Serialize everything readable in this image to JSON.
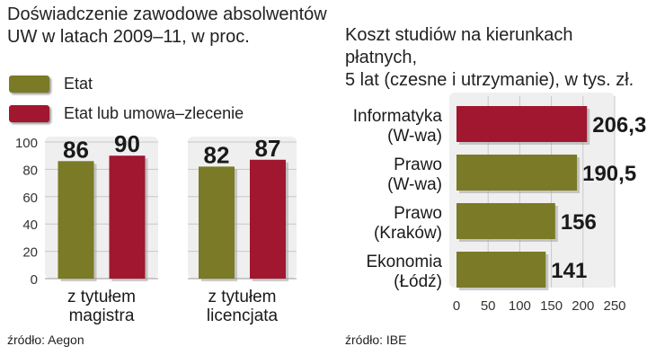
{
  "left": {
    "title_line1": "Doświadczenie zawodowe absolwentów",
    "title_line2": "UW w latach 2009–11, w proc.",
    "legend": [
      {
        "label": "Etat",
        "color": "#7b7a26"
      },
      {
        "label": "Etat lub umowa–zlecenie",
        "color": "#a0172f"
      }
    ],
    "source": "źródło: Aegon"
  },
  "right": {
    "title_line1": "Koszt studiów na kierunkach płatnych,",
    "title_line2": "5 lat (czesne i utrzymanie), w tys. zł.",
    "source": "źródło: IBE"
  },
  "chart_data": [
    {
      "type": "bar",
      "title": "Doświadczenie zawodowe absolwentów UW w latach 2009–11, w proc.",
      "ylim": [
        0,
        100
      ],
      "yticks": [
        "0",
        "20",
        "40",
        "60",
        "80",
        "100"
      ],
      "grid": true,
      "colors": {
        "Etat": "#7b7a26",
        "Etat lub umowa–zlecenie": "#a0172f"
      },
      "groups": [
        {
          "category_lines": [
            "z tytułem",
            "magistra"
          ],
          "values": [
            86,
            90
          ],
          "labels": [
            "86",
            "90"
          ]
        },
        {
          "category_lines": [
            "z tytułem",
            "licencjata"
          ],
          "values": [
            82,
            87
          ],
          "labels": [
            "82",
            "87"
          ]
        }
      ],
      "series": [
        {
          "name": "Etat",
          "values": [
            86,
            82
          ]
        },
        {
          "name": "Etat lub umowa–zlecenie",
          "values": [
            90,
            87
          ]
        }
      ]
    },
    {
      "type": "bar",
      "orientation": "horizontal",
      "title": "Koszt studiów na kierunkach płatnych, 5 lat (czesne i utrzymanie), w tys. zł.",
      "xlim": [
        0,
        250
      ],
      "xticks": [
        "0",
        "50",
        "100",
        "150",
        "200",
        "250"
      ],
      "grid": true,
      "categories": [
        {
          "lines": [
            "Informatyka",
            "(W-wa)"
          ],
          "value": 206.3,
          "label": "206,3",
          "color": "#a0172f"
        },
        {
          "lines": [
            "Prawo",
            "(W-wa)"
          ],
          "value": 190.5,
          "label": "190,5",
          "color": "#7b7a26"
        },
        {
          "lines": [
            "Prawo",
            "(Kraków)"
          ],
          "value": 156,
          "label": "156",
          "color": "#7b7a26"
        },
        {
          "lines": [
            "Ekonomia",
            "(Łódź)"
          ],
          "value": 141,
          "label": "141",
          "color": "#7b7a26"
        }
      ]
    }
  ]
}
